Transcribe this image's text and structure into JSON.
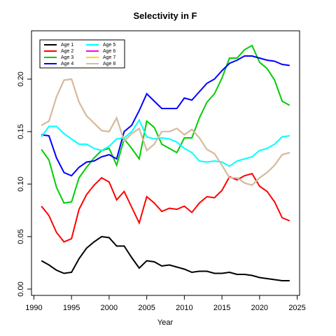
{
  "chart_data": {
    "type": "line",
    "title": "Selectivity in F",
    "xlabel": "Year",
    "x": [
      1991,
      1992,
      1993,
      1994,
      1995,
      1996,
      1997,
      1998,
      1999,
      2000,
      2001,
      2002,
      2003,
      2004,
      2005,
      2006,
      2007,
      2008,
      2009,
      2010,
      2011,
      2012,
      2013,
      2014,
      2015,
      2016,
      2017,
      2018,
      2019,
      2020,
      2021,
      2022,
      2023,
      2024
    ],
    "series": [
      {
        "name": "Age 1",
        "color": "#000000",
        "values": [
          0.027,
          0.023,
          0.018,
          0.015,
          0.016,
          0.029,
          0.039,
          0.045,
          0.05,
          0.049,
          0.041,
          0.041,
          0.03,
          0.02,
          0.027,
          0.026,
          0.022,
          0.023,
          0.021,
          0.019,
          0.016,
          0.017,
          0.017,
          0.015,
          0.015,
          0.016,
          0.014,
          0.014,
          0.013,
          0.011,
          0.01,
          0.009,
          0.008,
          0.008
        ]
      },
      {
        "name": "Age 2",
        "color": "#ff0000",
        "values": [
          0.079,
          0.07,
          0.054,
          0.045,
          0.048,
          0.076,
          0.09,
          0.099,
          0.106,
          0.102,
          0.085,
          0.093,
          0.078,
          0.063,
          0.088,
          0.082,
          0.074,
          0.077,
          0.076,
          0.079,
          0.073,
          0.082,
          0.088,
          0.087,
          0.094,
          0.107,
          0.104,
          0.108,
          0.11,
          0.098,
          0.093,
          0.083,
          0.068,
          0.065
        ]
      },
      {
        "name": "Age 3",
        "color": "#00cd00",
        "values": [
          0.133,
          0.123,
          0.097,
          0.082,
          0.083,
          0.106,
          0.116,
          0.125,
          0.132,
          0.134,
          0.118,
          0.143,
          0.134,
          0.124,
          0.16,
          0.154,
          0.138,
          0.134,
          0.13,
          0.144,
          0.144,
          0.163,
          0.178,
          0.186,
          0.201,
          0.22,
          0.22,
          0.228,
          0.232,
          0.216,
          0.21,
          0.199,
          0.179,
          0.175
        ]
      },
      {
        "name": "Age 4",
        "color": "#0000ff",
        "values": [
          0.147,
          0.146,
          0.125,
          0.111,
          0.108,
          0.116,
          0.121,
          0.122,
          0.126,
          0.128,
          0.124,
          0.15,
          0.156,
          0.17,
          0.186,
          0.179,
          0.172,
          0.172,
          0.172,
          0.182,
          0.18,
          0.188,
          0.196,
          0.2,
          0.208,
          0.215,
          0.218,
          0.222,
          0.222,
          0.22,
          0.218,
          0.217,
          0.214,
          0.213
        ]
      },
      {
        "name": "Age 5",
        "color": "#00ffff",
        "values": [
          0.145,
          0.155,
          0.155,
          0.148,
          0.143,
          0.138,
          0.138,
          0.134,
          0.132,
          0.136,
          0.143,
          0.144,
          0.15,
          0.161,
          0.145,
          0.143,
          0.144,
          0.143,
          0.14,
          0.134,
          0.13,
          0.122,
          0.121,
          0.122,
          0.121,
          0.117,
          0.122,
          0.124,
          0.126,
          0.132,
          0.134,
          0.138,
          0.145,
          0.146
        ]
      },
      {
        "name": "Age 6",
        "color": "#ff00ff",
        "values": [
          0.156,
          0.16,
          0.183,
          0.199,
          0.2,
          0.178,
          0.165,
          0.158,
          0.151,
          0.15,
          0.163,
          0.141,
          0.148,
          0.153,
          0.132,
          0.138,
          0.15,
          0.15,
          0.153,
          0.147,
          0.152,
          0.144,
          0.133,
          0.129,
          0.118,
          0.106,
          0.106,
          0.101,
          0.099,
          0.106,
          0.111,
          0.118,
          0.128,
          0.13
        ]
      },
      {
        "name": "Age 7",
        "color": "#ffd700",
        "values": [
          0.156,
          0.16,
          0.183,
          0.199,
          0.2,
          0.178,
          0.165,
          0.158,
          0.151,
          0.15,
          0.163,
          0.141,
          0.148,
          0.153,
          0.132,
          0.138,
          0.15,
          0.15,
          0.153,
          0.147,
          0.152,
          0.144,
          0.133,
          0.129,
          0.118,
          0.106,
          0.106,
          0.101,
          0.099,
          0.106,
          0.111,
          0.118,
          0.128,
          0.13
        ]
      },
      {
        "name": "Age 8",
        "color": "#d2bfa5",
        "values": [
          0.156,
          0.16,
          0.183,
          0.199,
          0.2,
          0.178,
          0.165,
          0.158,
          0.151,
          0.15,
          0.163,
          0.141,
          0.148,
          0.153,
          0.132,
          0.138,
          0.15,
          0.15,
          0.153,
          0.147,
          0.152,
          0.144,
          0.133,
          0.129,
          0.118,
          0.106,
          0.106,
          0.101,
          0.099,
          0.106,
          0.111,
          0.118,
          0.128,
          0.13
        ]
      }
    ],
    "xlim": [
      1989.68,
      2025.32
    ],
    "xticks": [
      1990,
      1995,
      2000,
      2005,
      2010,
      2015,
      2020,
      2025
    ],
    "ylim": [
      -0.006,
      0.246
    ],
    "yticks": [
      {
        "value": 0,
        "label": "0.00"
      },
      {
        "value": 0.05,
        "label": "0.05"
      },
      {
        "value": 0.1,
        "label": "0.10"
      },
      {
        "value": 0.15,
        "label": "0.15"
      },
      {
        "value": 0.2,
        "label": "0.20"
      }
    ],
    "legend": "top-left"
  }
}
